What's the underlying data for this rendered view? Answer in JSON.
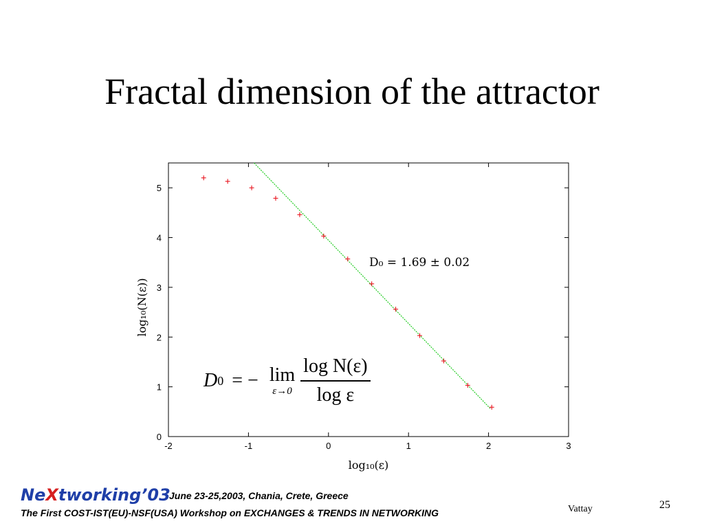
{
  "slide": {
    "title": "Fractal dimension of the attractor",
    "formula": {
      "lhs": "D",
      "lhs_subscript": "0",
      "equals": "= −",
      "lim": "lim",
      "lim_under": "ε→0",
      "numerator": "log N(ε)",
      "denominator": "log ε"
    }
  },
  "footer": {
    "logo_pre": "Ne",
    "logo_x": "X",
    "logo_post": "tworking’03",
    "date_location": "June 23-25,2003, Chania, Crete, Greece",
    "workshop": "The First COST-IST(EU)-NSF(USA) Workshop on EXCHANGES & TRENDS IN NETWORKING",
    "author": "Vattay",
    "page_number": "25"
  },
  "chart_data": {
    "type": "scatter",
    "xlabel": "log₁₀(ε)",
    "ylabel": "log₁₀(N(ε))",
    "xlim": [
      -2,
      3
    ],
    "ylim": [
      0,
      5.5
    ],
    "x_ticks": [
      "-2",
      "-1",
      "0",
      "1",
      "2",
      "3"
    ],
    "y_ticks": [
      "0",
      "1",
      "2",
      "3",
      "4",
      "5"
    ],
    "grid": false,
    "annotation": "D₀ = 1.69 ± 0.02",
    "colors": {
      "points": "#e8141e",
      "fit_line": "#22cc22"
    },
    "series": [
      {
        "type": "scatter",
        "marker": "plus",
        "points": [
          {
            "x": -1.56,
            "y": 5.2
          },
          {
            "x": -1.26,
            "y": 5.13
          },
          {
            "x": -0.96,
            "y": 5.0
          },
          {
            "x": -0.66,
            "y": 4.79
          },
          {
            "x": -0.36,
            "y": 4.46
          },
          {
            "x": -0.06,
            "y": 4.03
          },
          {
            "x": 0.24,
            "y": 3.57
          },
          {
            "x": 0.54,
            "y": 3.07
          },
          {
            "x": 0.84,
            "y": 2.56
          },
          {
            "x": 1.14,
            "y": 2.03
          },
          {
            "x": 1.44,
            "y": 1.52
          },
          {
            "x": 1.74,
            "y": 1.03
          },
          {
            "x": 2.04,
            "y": 0.59
          }
        ]
      },
      {
        "type": "line",
        "style": "dashed",
        "points": [
          {
            "x": -0.93,
            "y": 5.5
          },
          {
            "x": 2.03,
            "y": 0.55
          }
        ]
      }
    ]
  }
}
